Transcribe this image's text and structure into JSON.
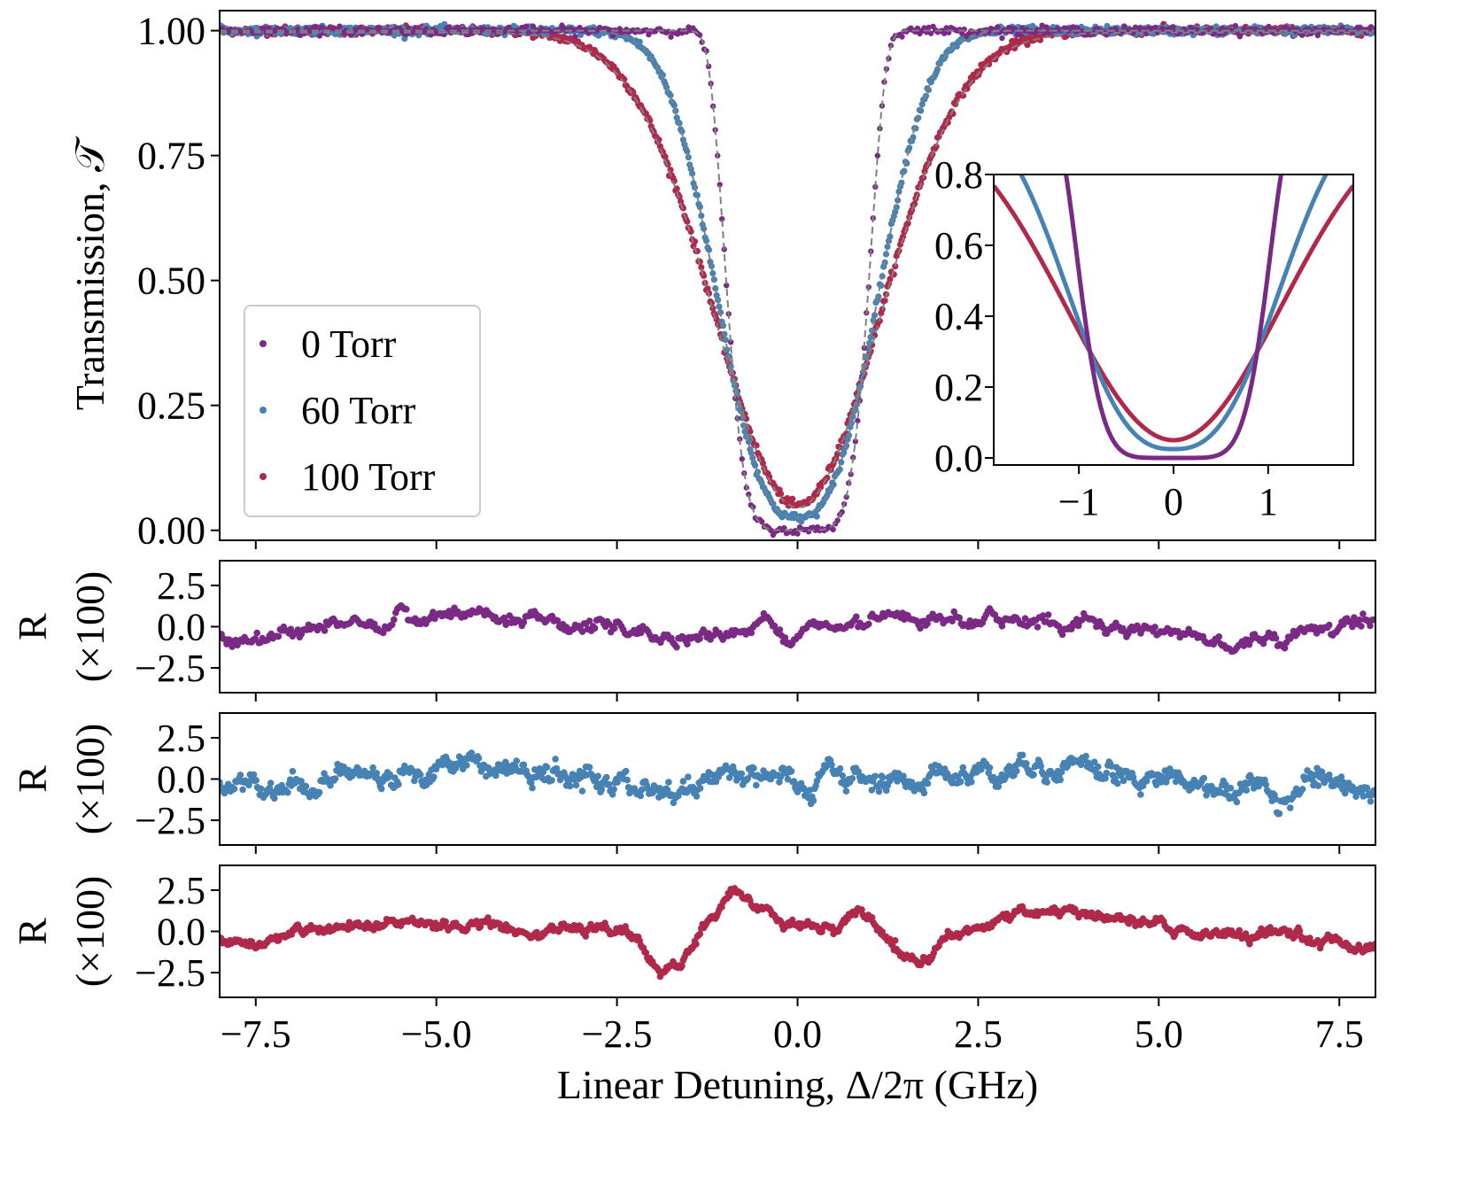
{
  "chart_data": [
    {
      "type": "scatter",
      "panel": "transmission",
      "xlabel": "",
      "ylabel": "Transmission, 𝒯",
      "xlim": [
        -8.0,
        8.0
      ],
      "ylim": [
        -0.02,
        1.04
      ],
      "x_ticks": [
        -7.5,
        -5.0,
        -2.5,
        0.0,
        2.5,
        5.0,
        7.5
      ],
      "y_ticks": [
        0.0,
        0.25,
        0.5,
        0.75,
        1.0
      ],
      "y_tick_labels": [
        "0.00",
        "0.25",
        "0.50",
        "0.75",
        "1.00"
      ],
      "legend": {
        "location": "center-left"
      },
      "fit_line_color": "#808080",
      "series": [
        {
          "name": "0 Torr",
          "color": "#7a2a85",
          "center": 0.0,
          "width": 1.05,
          "depth": 1.0,
          "shape_power": 6,
          "x": [
            -7.5,
            -5,
            -2.5,
            -1.5,
            -1.2,
            -1.0,
            -0.8,
            -0.6,
            -0.4,
            -0.2,
            0,
            0.2,
            0.4,
            0.6,
            0.8,
            1.0,
            1.2,
            1.5,
            2.5,
            5,
            7.5
          ],
          "y": [
            1.0,
            1.0,
            1.0,
            0.99,
            0.92,
            0.72,
            0.42,
            0.15,
            0.03,
            0.0,
            -0.005,
            0.0,
            0.03,
            0.15,
            0.42,
            0.72,
            0.92,
            0.99,
            1.0,
            1.0,
            1.0
          ]
        },
        {
          "name": "60 Torr",
          "color": "#4682b4",
          "center": 0.0,
          "width": 1.35,
          "depth": 0.975,
          "shape_power": 2.6,
          "x": [
            -7.5,
            -5,
            -2.5,
            -1.5,
            -1.0,
            -0.5,
            0,
            0.5,
            1.0,
            1.5,
            2.5,
            5,
            7.5
          ],
          "y": [
            0.995,
            0.99,
            0.88,
            0.63,
            0.36,
            0.1,
            0.025,
            0.1,
            0.36,
            0.63,
            0.88,
            0.99,
            0.995
          ],
          "fit_x": [
            -7.5,
            -2.5,
            0,
            2.5,
            7.5
          ],
          "fit_y": [
            0.99,
            0.87,
            0.025,
            0.87,
            0.99
          ]
        },
        {
          "name": "100 Torr",
          "color": "#b0284a",
          "center": 0.0,
          "width": 1.6,
          "depth": 0.95,
          "shape_power": 2.0,
          "x": [
            -7.5,
            -5,
            -2.5,
            -1.5,
            -1.0,
            -0.5,
            0,
            0.5,
            1.0,
            1.5,
            2.5,
            5,
            7.5
          ],
          "y": [
            0.985,
            0.96,
            0.8,
            0.52,
            0.3,
            0.12,
            0.05,
            0.12,
            0.3,
            0.52,
            0.8,
            0.96,
            0.985
          ],
          "fit_x": [
            -7.5,
            -2.5,
            0,
            2.5,
            7.5
          ],
          "fit_y": [
            0.98,
            0.8,
            0.05,
            0.8,
            0.98
          ]
        }
      ]
    },
    {
      "type": "line",
      "panel": "inset",
      "xlabel": "",
      "ylabel": "",
      "xlim": [
        -1.9,
        1.9
      ],
      "ylim": [
        -0.02,
        0.8
      ],
      "x_ticks": [
        -1,
        0,
        1
      ],
      "x_tick_labels": [
        "−1",
        "0",
        "1"
      ],
      "y_ticks": [
        0.0,
        0.2,
        0.4,
        0.6,
        0.8
      ],
      "y_tick_labels": [
        "0.0",
        "0.2",
        "0.4",
        "0.6",
        "0.8"
      ],
      "series_refs": [
        "0 Torr",
        "60 Torr",
        "100 Torr"
      ]
    },
    {
      "type": "scatter",
      "panel": "residual-0",
      "series_name": "0 Torr",
      "color": "#7a2a85",
      "ylabel": [
        "R",
        "(×100)"
      ],
      "xlim": [
        -8.0,
        8.0
      ],
      "ylim": [
        -4.0,
        4.0
      ],
      "y_ticks": [
        -2.5,
        0.0,
        2.5
      ],
      "y_tick_labels": [
        "−2.5",
        "0.0",
        "2.5"
      ],
      "trend_x": [
        -8,
        -7,
        -6,
        -5,
        -4,
        -3,
        -2,
        -1,
        -0.5,
        0,
        0.5,
        1,
        2,
        3,
        4,
        5,
        6,
        7,
        8
      ],
      "trend_y": [
        -0.6,
        -0.6,
        0.3,
        0.4,
        0.3,
        0.0,
        -0.5,
        -0.3,
        0.5,
        -0.5,
        -0.2,
        0.3,
        0.0,
        0.5,
        0.3,
        -0.2,
        -0.8,
        -0.4,
        0.5
      ],
      "noise": 0.3
    },
    {
      "type": "scatter",
      "panel": "residual-60",
      "series_name": "60 Torr",
      "color": "#4682b4",
      "ylabel": [
        "R",
        "(×100)"
      ],
      "xlim": [
        -8.0,
        8.0
      ],
      "ylim": [
        -4.0,
        4.0
      ],
      "y_ticks": [
        -2.5,
        0.0,
        2.5
      ],
      "y_tick_labels": [
        "−2.5",
        "0.0",
        "2.5"
      ],
      "trend_x": [
        -8,
        -7,
        -6,
        -5,
        -4.5,
        -4,
        -3,
        -2.5,
        -2,
        -1.5,
        -1,
        -0.5,
        0,
        0.5,
        1,
        2,
        3,
        4,
        4.5,
        5,
        6,
        7,
        8
      ],
      "trend_y": [
        -0.3,
        -0.2,
        0.3,
        0.8,
        0.9,
        0.4,
        0.0,
        -0.5,
        -0.8,
        -0.5,
        0.6,
        0.4,
        -0.6,
        -0.3,
        0.0,
        0.2,
        0.9,
        0.8,
        0.5,
        0.3,
        -0.7,
        -0.5,
        -1.2
      ],
      "noise": 0.45
    },
    {
      "type": "scatter",
      "panel": "residual-100",
      "series_name": "100 Torr",
      "color": "#b0284a",
      "ylabel": [
        "R",
        "(×100)"
      ],
      "xlabel": "Linear Detuning, Δ/2π (GHz)",
      "xlim": [
        -8.0,
        8.0
      ],
      "ylim": [
        -4.0,
        4.0
      ],
      "x_ticks": [
        -7.5,
        -5.0,
        -2.5,
        0.0,
        2.5,
        5.0,
        7.5
      ],
      "x_tick_labels": [
        "−7.5",
        "−5.0",
        "−2.5",
        "0.0",
        "2.5",
        "5.0",
        "7.5"
      ],
      "y_ticks": [
        -2.5,
        0.0,
        2.5
      ],
      "y_tick_labels": [
        "−2.5",
        "0.0",
        "2.5"
      ],
      "trend_x": [
        -8,
        -7,
        -6,
        -5,
        -4,
        -3,
        -2.5,
        -2.2,
        -1.9,
        -1.6,
        -1.3,
        -1.0,
        -0.8,
        -0.5,
        -0.2,
        0.2,
        0.5,
        0.8,
        1.1,
        1.4,
        1.7,
        2.0,
        2.5,
        3.0,
        3.5,
        4.0,
        5.0,
        6.0,
        7.0,
        8.0
      ],
      "trend_y": [
        -0.5,
        -0.3,
        0.1,
        0.3,
        0.4,
        0.3,
        0.0,
        -0.8,
        -2.4,
        -2.0,
        0.2,
        2.1,
        2.3,
        1.4,
        0.2,
        0.0,
        0.3,
        1.3,
        0.0,
        -1.3,
        -1.6,
        -0.8,
        0.3,
        1.0,
        1.2,
        1.0,
        0.2,
        -0.3,
        -0.5,
        -0.8
      ],
      "noise": 0.22
    }
  ]
}
